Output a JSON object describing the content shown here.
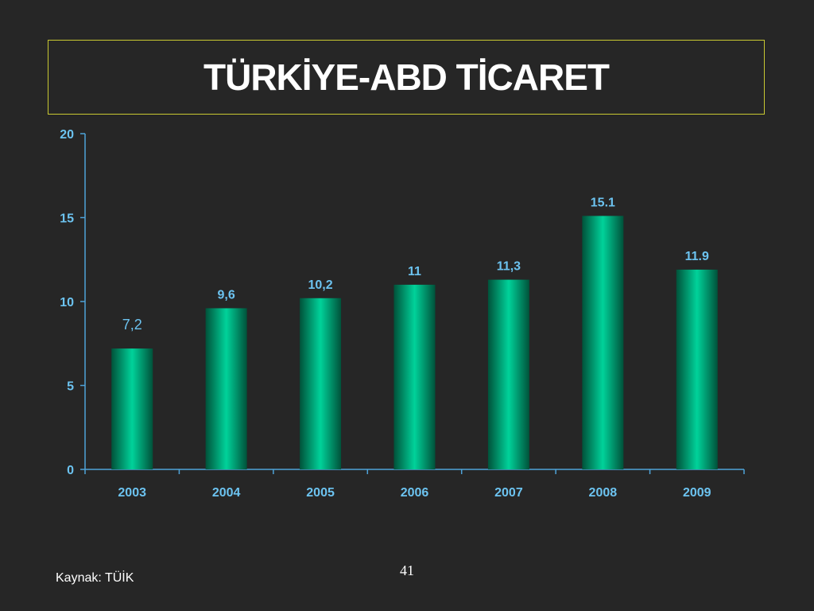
{
  "slide": {
    "title": "TÜRKİYE-ABD TİCARET",
    "source": "Kaynak: TÜİK",
    "page_number": "41"
  },
  "colors": {
    "background": "#262626",
    "title_border": "#c8c832",
    "axis": "#4fa3d9",
    "tick_label": "#6cc3f0",
    "data_label": "#6cc3f0",
    "bar_light": "#00d29a",
    "bar_dark": "#00523a"
  },
  "chart_data": {
    "type": "bar",
    "categories": [
      "2003",
      "2004",
      "2005",
      "2006",
      "2007",
      "2008",
      "2009"
    ],
    "values": [
      7.2,
      9.6,
      10.2,
      11,
      11.3,
      15.1,
      11.9
    ],
    "data_labels": [
      "7,2",
      "9,6",
      "10,2",
      "11",
      "11,3",
      "15.1",
      "11.9"
    ],
    "ylim": [
      0,
      20
    ],
    "yticks": [
      "0",
      "5",
      "10",
      "15",
      "20"
    ],
    "grid": false
  }
}
